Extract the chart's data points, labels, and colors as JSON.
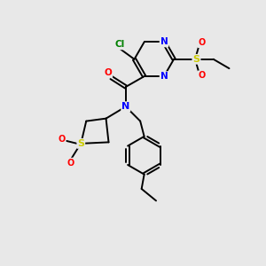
{
  "bg_color": "#e8e8e8",
  "bond_color": "black",
  "atom_colors": {
    "N": "blue",
    "O": "red",
    "S": "#cccc00",
    "Cl": "green",
    "C": "black"
  },
  "figsize": [
    3.0,
    3.0
  ],
  "dpi": 100
}
